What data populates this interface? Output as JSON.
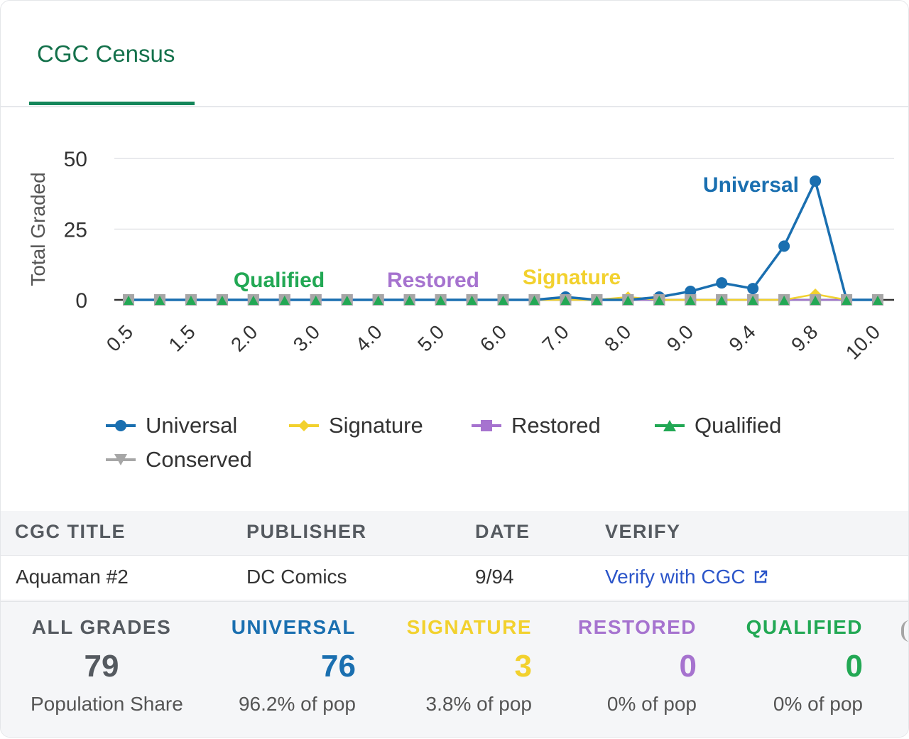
{
  "tabs": [
    {
      "label": "CGC Census"
    }
  ],
  "colors": {
    "universal": "#1a6fb0",
    "signature": "#f2d12e",
    "restored": "#a673cf",
    "qualified": "#22a854",
    "conserved": "#a6a6a6",
    "accent": "#14865a"
  },
  "chart_data": {
    "type": "line",
    "ylabel": "Total Graded",
    "xlabel": "",
    "ylim": [
      0,
      50
    ],
    "yticks": [
      0,
      25,
      50
    ],
    "grid": true,
    "legend_position": "bottom",
    "x_tick_labels": [
      "0.5",
      "1.5",
      "2.0",
      "3.0",
      "4.0",
      "5.0",
      "6.0",
      "7.0",
      "8.0",
      "9.0",
      "9.4",
      "9.8",
      "10.0"
    ],
    "x": [
      "0.5",
      "1.0",
      "1.5",
      "1.8",
      "2.0",
      "2.5",
      "3.0",
      "3.5",
      "4.0",
      "4.5",
      "5.0",
      "5.5",
      "6.0",
      "6.5",
      "7.0",
      "7.5",
      "8.0",
      "8.5",
      "9.0",
      "9.2",
      "9.4",
      "9.6",
      "9.8",
      "9.9",
      "10.0"
    ],
    "series": [
      {
        "name": "Universal",
        "color": "#1a6fb0",
        "marker": "circle",
        "values": [
          0,
          0,
          0,
          0,
          0,
          0,
          0,
          0,
          0,
          0,
          0,
          0,
          0,
          0,
          1,
          0,
          0,
          1,
          3,
          6,
          4,
          19,
          42,
          0,
          0
        ]
      },
      {
        "name": "Signature",
        "color": "#f2d12e",
        "marker": "diamond",
        "values": [
          0,
          0,
          0,
          0,
          0,
          0,
          0,
          0,
          0,
          0,
          0,
          0,
          0,
          0,
          0,
          0,
          1,
          0,
          0,
          0,
          0,
          0,
          2,
          0,
          0
        ]
      },
      {
        "name": "Restored",
        "color": "#a673cf",
        "marker": "square",
        "values": [
          0,
          0,
          0,
          0,
          0,
          0,
          0,
          0,
          0,
          0,
          0,
          0,
          0,
          0,
          0,
          0,
          0,
          0,
          0,
          0,
          0,
          0,
          0,
          0,
          0
        ]
      },
      {
        "name": "Qualified",
        "color": "#22a854",
        "marker": "triangle",
        "values": [
          0,
          0,
          0,
          0,
          0,
          0,
          0,
          0,
          0,
          0,
          0,
          0,
          0,
          0,
          0,
          0,
          0,
          0,
          0,
          0,
          0,
          0,
          0,
          0,
          0
        ]
      },
      {
        "name": "Conserved",
        "color": "#a6a6a6",
        "marker": "triangle-down",
        "values": [
          0,
          0,
          0,
          0,
          0,
          0,
          0,
          0,
          0,
          0,
          0,
          0,
          0,
          0,
          0,
          0,
          0,
          0,
          0,
          0,
          0,
          0,
          0,
          0,
          0
        ]
      }
    ],
    "annotations": [
      {
        "text": "Qualified",
        "series": "Qualified",
        "x": "2.0"
      },
      {
        "text": "Restored",
        "series": "Restored",
        "x": "5.0"
      },
      {
        "text": "Signature",
        "series": "Signature",
        "x": "7.0"
      },
      {
        "text": "Universal",
        "series": "Universal",
        "x": "9.8"
      }
    ]
  },
  "legend": [
    {
      "label": "Universal",
      "marker": "circle",
      "color": "#1a6fb0"
    },
    {
      "label": "Signature",
      "marker": "diamond",
      "color": "#f2d12e"
    },
    {
      "label": "Restored",
      "marker": "square",
      "color": "#a673cf"
    },
    {
      "label": "Qualified",
      "marker": "triangle",
      "color": "#22a854"
    },
    {
      "label": "Conserved",
      "marker": "triangle-down",
      "color": "#a6a6a6"
    }
  ],
  "table": {
    "headers": {
      "title": "CGC TITLE",
      "publisher": "PUBLISHER",
      "date": "DATE",
      "verify": "VERIFY"
    },
    "row": {
      "title": "Aquaman #2",
      "publisher": "DC Comics",
      "date": "9/94",
      "verify_label": "Verify with CGC",
      "verify_icon": "external-link-icon"
    }
  },
  "stats": [
    {
      "key": "all",
      "label": "ALL GRADES",
      "value": "79",
      "sub": "Population Share",
      "color": "#555a60"
    },
    {
      "key": "universal",
      "label": "UNIVERSAL",
      "value": "76",
      "sub": "96.2% of pop",
      "color": "#1a6fb0"
    },
    {
      "key": "signature",
      "label": "SIGNATURE",
      "value": "3",
      "sub": "3.8% of pop",
      "color": "#f2d12e"
    },
    {
      "key": "restored",
      "label": "RESTORED",
      "value": "0",
      "sub": "0% of pop",
      "color": "#a673cf"
    },
    {
      "key": "qualified",
      "label": "QUALIFIED",
      "value": "0",
      "sub": "0% of pop",
      "color": "#22a854"
    }
  ]
}
